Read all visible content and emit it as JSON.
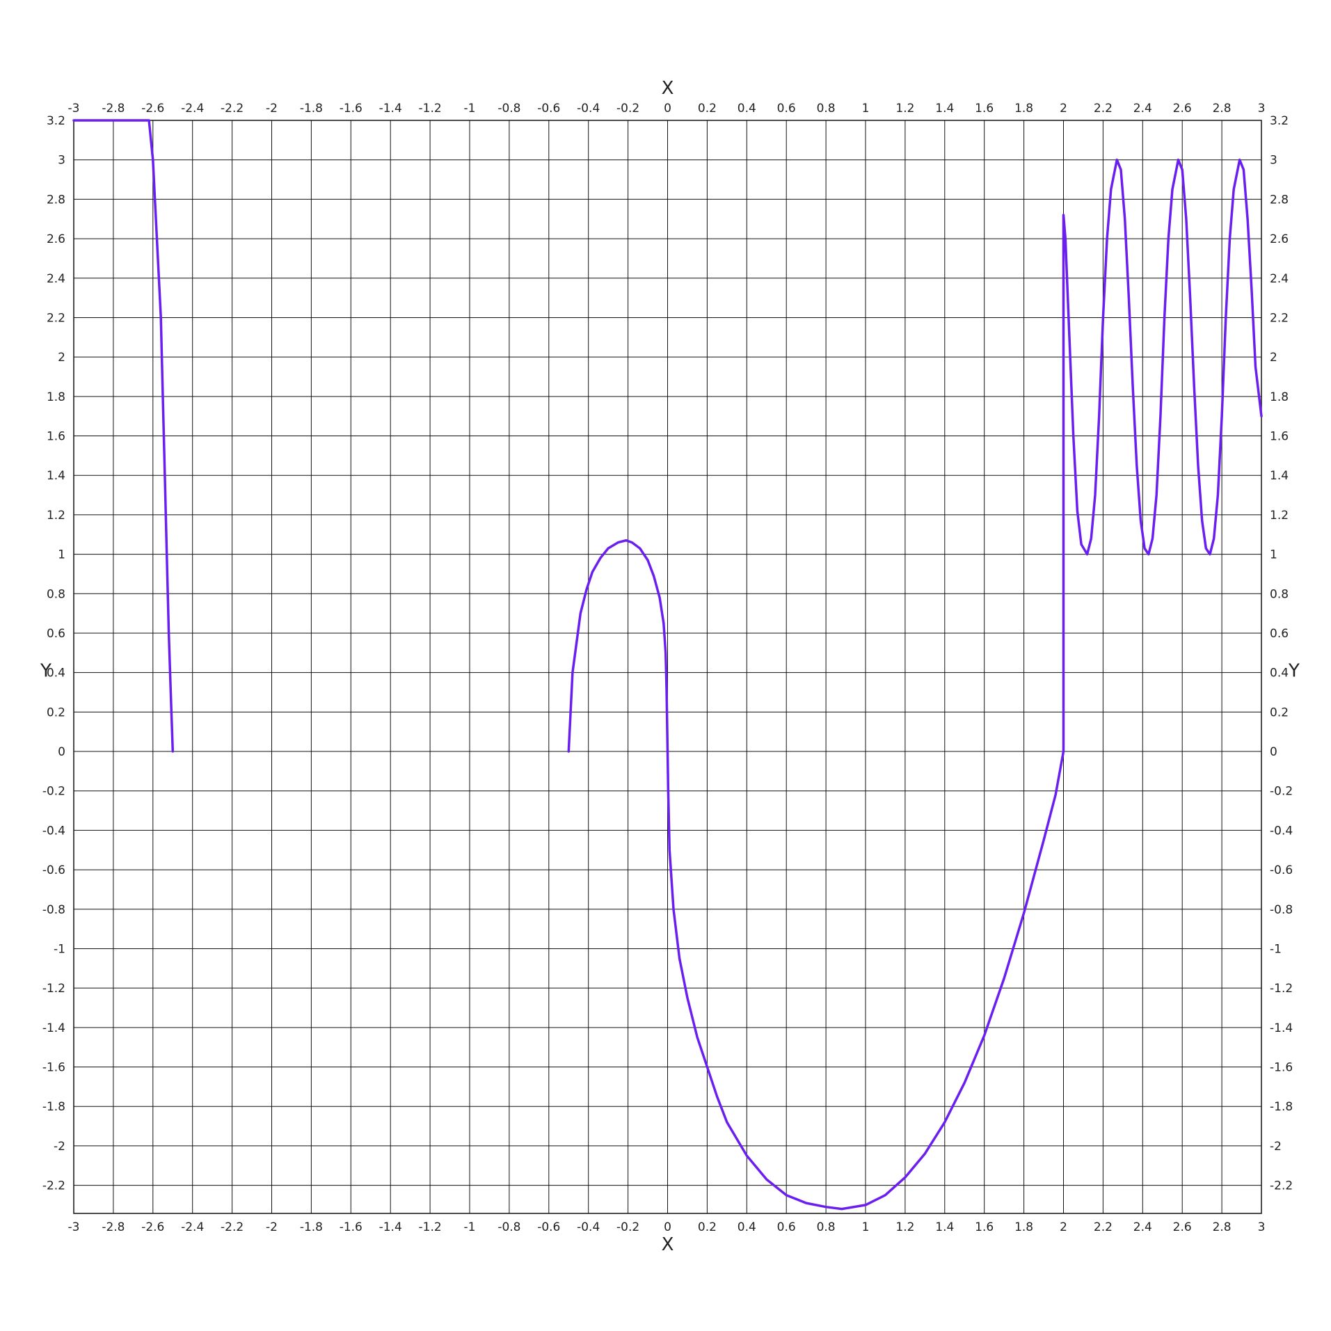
{
  "chart_data": {
    "type": "line",
    "title": "",
    "xlabel": "X",
    "ylabel": "Y",
    "xlim": [
      -3,
      3
    ],
    "ylim": [
      -2.32,
      3.2
    ],
    "grid": true,
    "x_ticks": [
      "-3",
      "-2.8",
      "-2.6",
      "-2.4",
      "-2.2",
      "-2",
      "-1.8",
      "-1.6",
      "-1.4",
      "-1.2",
      "-1",
      "-0.8",
      "-0.6",
      "-0.4",
      "-0.2",
      "0",
      "0.2",
      "0.4",
      "0.6",
      "0.8",
      "1",
      "1.2",
      "1.4",
      "1.6",
      "1.8",
      "2",
      "2.2",
      "2.4",
      "2.6",
      "2.8",
      "3"
    ],
    "y_ticks": [
      "3.2",
      "3",
      "2.8",
      "2.6",
      "2.4",
      "2.2",
      "2",
      "1.8",
      "1.6",
      "1.4",
      "1.2",
      "1",
      "0.8",
      "0.6",
      "0.4",
      "0.2",
      "0",
      "-0.2",
      "-0.4",
      "-0.6",
      "-0.8",
      "-1",
      "-1.2",
      "-1.4",
      "-1.6",
      "-1.8",
      "-2",
      "-2.2"
    ],
    "line_color": "#6a1ff0",
    "series": [
      {
        "segments": [
          [
            [
              -3.0,
              3.2
            ],
            [
              -2.62,
              3.2
            ],
            [
              -2.6,
              3.0
            ],
            [
              -2.58,
              2.6
            ],
            [
              -2.56,
              2.2
            ],
            [
              -2.55,
              1.8
            ],
            [
              -2.54,
              1.4
            ],
            [
              -2.53,
              1.0
            ],
            [
              -2.52,
              0.6
            ],
            [
              -2.51,
              0.3
            ],
            [
              -2.5,
              0.0
            ]
          ],
          [
            [
              -0.5,
              0.0
            ],
            [
              -0.49,
              0.2
            ],
            [
              -0.48,
              0.4
            ],
            [
              -0.46,
              0.55
            ],
            [
              -0.44,
              0.7
            ],
            [
              -0.41,
              0.82
            ],
            [
              -0.38,
              0.91
            ],
            [
              -0.34,
              0.98
            ],
            [
              -0.3,
              1.03
            ],
            [
              -0.25,
              1.06
            ],
            [
              -0.21,
              1.07
            ],
            [
              -0.18,
              1.06
            ],
            [
              -0.14,
              1.03
            ],
            [
              -0.1,
              0.97
            ],
            [
              -0.07,
              0.89
            ],
            [
              -0.04,
              0.78
            ],
            [
              -0.02,
              0.65
            ],
            [
              -0.01,
              0.5
            ],
            [
              -0.005,
              0.3
            ],
            [
              0.0,
              0.0
            ],
            [
              0.003,
              -0.2
            ],
            [
              0.01,
              -0.5
            ],
            [
              0.03,
              -0.8
            ],
            [
              0.06,
              -1.05
            ],
            [
              0.1,
              -1.25
            ],
            [
              0.15,
              -1.45
            ],
            [
              0.2,
              -1.6
            ],
            [
              0.25,
              -1.75
            ],
            [
              0.3,
              -1.88
            ],
            [
              0.4,
              -2.05
            ],
            [
              0.5,
              -2.17
            ],
            [
              0.6,
              -2.25
            ],
            [
              0.7,
              -2.29
            ],
            [
              0.8,
              -2.31
            ],
            [
              0.88,
              -2.32
            ],
            [
              1.0,
              -2.3
            ],
            [
              1.1,
              -2.25
            ],
            [
              1.2,
              -2.16
            ],
            [
              1.3,
              -2.04
            ],
            [
              1.4,
              -1.88
            ],
            [
              1.5,
              -1.68
            ],
            [
              1.6,
              -1.44
            ],
            [
              1.7,
              -1.15
            ],
            [
              1.8,
              -0.82
            ],
            [
              1.9,
              -0.45
            ],
            [
              1.96,
              -0.22
            ],
            [
              2.0,
              0.0
            ],
            [
              2.0,
              2.72
            ],
            [
              2.01,
              2.6
            ],
            [
              2.03,
              2.1
            ],
            [
              2.05,
              1.6
            ],
            [
              2.07,
              1.22
            ],
            [
              2.09,
              1.05
            ],
            [
              2.12,
              1.0
            ],
            [
              2.14,
              1.08
            ],
            [
              2.16,
              1.3
            ],
            [
              2.18,
              1.7
            ],
            [
              2.2,
              2.2
            ],
            [
              2.22,
              2.6
            ],
            [
              2.24,
              2.85
            ],
            [
              2.27,
              3.0
            ],
            [
              2.29,
              2.95
            ],
            [
              2.31,
              2.7
            ],
            [
              2.33,
              2.3
            ],
            [
              2.35,
              1.85
            ],
            [
              2.37,
              1.45
            ],
            [
              2.39,
              1.17
            ],
            [
              2.41,
              1.03
            ],
            [
              2.43,
              1.0
            ],
            [
              2.45,
              1.08
            ],
            [
              2.47,
              1.3
            ],
            [
              2.49,
              1.7
            ],
            [
              2.51,
              2.2
            ],
            [
              2.53,
              2.6
            ],
            [
              2.55,
              2.85
            ],
            [
              2.58,
              3.0
            ],
            [
              2.6,
              2.95
            ],
            [
              2.62,
              2.7
            ],
            [
              2.64,
              2.3
            ],
            [
              2.66,
              1.85
            ],
            [
              2.68,
              1.45
            ],
            [
              2.7,
              1.17
            ],
            [
              2.72,
              1.03
            ],
            [
              2.74,
              1.0
            ],
            [
              2.76,
              1.08
            ],
            [
              2.78,
              1.3
            ],
            [
              2.8,
              1.7
            ],
            [
              2.82,
              2.2
            ],
            [
              2.84,
              2.6
            ],
            [
              2.86,
              2.85
            ],
            [
              2.89,
              3.0
            ],
            [
              2.91,
              2.95
            ],
            [
              2.93,
              2.7
            ],
            [
              2.95,
              2.35
            ],
            [
              2.97,
              1.95
            ],
            [
              3.0,
              1.7
            ]
          ]
        ]
      }
    ]
  }
}
